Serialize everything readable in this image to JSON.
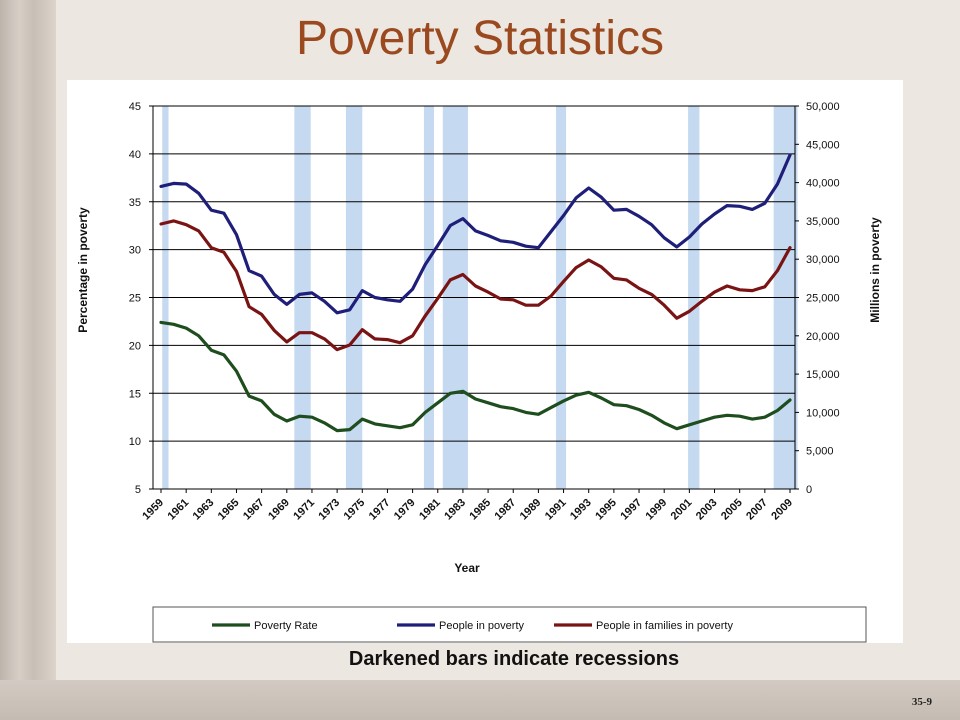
{
  "slide": {
    "title": "Poverty Statistics",
    "caption": "Darkened bars indicate recessions",
    "slide_number": "35-9"
  },
  "colors": {
    "title": "#9b4a1f",
    "poverty_rate": "#1e4d1e",
    "people_in_poverty": "#1f1f7a",
    "people_in_families": "#7a1414",
    "recession": "#c5d9f1"
  },
  "chart_data": {
    "type": "line",
    "xlabel": "Year",
    "ylabel_left": "Percentage in poverty",
    "ylabel_right": "Millions in poverty",
    "ylim_left": [
      5,
      45
    ],
    "ylim_right": [
      0,
      50000
    ],
    "yticks_left": [
      "5",
      "10",
      "15",
      "20",
      "25",
      "30",
      "35",
      "40",
      "45"
    ],
    "yticks_right": [
      "0",
      "5,000",
      "10,000",
      "15,000",
      "20,000",
      "25,000",
      "30,000",
      "35,000",
      "40,000",
      "45,000",
      "50,000"
    ],
    "xticks": [
      "1959",
      "1961",
      "1963",
      "1965",
      "1967",
      "1969",
      "1971",
      "1973",
      "1975",
      "1977",
      "1979",
      "1981",
      "1983",
      "1985",
      "1987",
      "1989",
      "1991",
      "1993",
      "1995",
      "1997",
      "1999",
      "2001",
      "2003",
      "2005",
      "2007",
      "2009"
    ],
    "grid": true,
    "legend_position": "bottom",
    "years": [
      1959,
      1960,
      1961,
      1962,
      1963,
      1964,
      1965,
      1966,
      1967,
      1968,
      1969,
      1970,
      1971,
      1972,
      1973,
      1974,
      1975,
      1976,
      1977,
      1978,
      1979,
      1980,
      1981,
      1982,
      1983,
      1984,
      1985,
      1986,
      1987,
      1988,
      1989,
      1990,
      1991,
      1992,
      1993,
      1994,
      1995,
      1996,
      1997,
      1998,
      1999,
      2000,
      2001,
      2002,
      2003,
      2004,
      2005,
      2006,
      2007,
      2008,
      2009
    ],
    "recessions": [
      [
        1959.1,
        1959.6
      ],
      [
        1969.6,
        1970.9
      ],
      [
        1973.7,
        1975.0
      ],
      [
        1979.9,
        1980.7
      ],
      [
        1981.4,
        1983.4
      ],
      [
        1990.4,
        1991.2
      ],
      [
        2000.9,
        2001.8
      ],
      [
        2007.7,
        2009.6
      ]
    ],
    "series": [
      {
        "name": "Poverty Rate",
        "axis": "left",
        "color": "#1e4d1e",
        "values": [
          22.4,
          22.2,
          21.8,
          21.0,
          19.5,
          19.0,
          17.3,
          14.7,
          14.2,
          12.8,
          12.1,
          12.6,
          12.5,
          11.9,
          11.1,
          11.2,
          12.3,
          11.8,
          11.6,
          11.4,
          11.7,
          13.0,
          14.0,
          15.0,
          15.2,
          14.4,
          14.0,
          13.6,
          13.4,
          13.0,
          12.8,
          13.5,
          14.2,
          14.8,
          15.1,
          14.5,
          13.8,
          13.7,
          13.3,
          12.7,
          11.9,
          11.3,
          11.7,
          12.1,
          12.5,
          12.7,
          12.6,
          12.3,
          12.5,
          13.2,
          14.3
        ]
      },
      {
        "name": "People in poverty",
        "axis": "right",
        "color": "#1f1f7a",
        "values": [
          39500,
          39900,
          39800,
          38600,
          36400,
          36000,
          33200,
          28500,
          27800,
          25400,
          24100,
          25400,
          25600,
          24500,
          23000,
          23400,
          25900,
          25000,
          24700,
          24500,
          26100,
          29300,
          31800,
          34400,
          35300,
          33700,
          33100,
          32400,
          32200,
          31700,
          31500,
          33600,
          35700,
          38000,
          39300,
          38100,
          36400,
          36500,
          35600,
          34500,
          32800,
          31600,
          32900,
          34600,
          35900,
          37000,
          36900,
          36500,
          37300,
          39800,
          43600
        ]
      },
      {
        "name": "People in families in poverty",
        "axis": "right",
        "color": "#7a1414",
        "values": [
          34600,
          35000,
          34500,
          33700,
          31500,
          30900,
          28400,
          23800,
          22800,
          20700,
          19200,
          20400,
          20400,
          19600,
          18200,
          18800,
          20800,
          19600,
          19500,
          19100,
          20000,
          22600,
          24900,
          27300,
          28000,
          26500,
          25700,
          24800,
          24700,
          24000,
          24000,
          25200,
          27100,
          28900,
          29900,
          29000,
          27500,
          27300,
          26200,
          25400,
          24000,
          22300,
          23200,
          24500,
          25700,
          26500,
          26000,
          25900,
          26400,
          28500,
          31500
        ]
      }
    ]
  }
}
